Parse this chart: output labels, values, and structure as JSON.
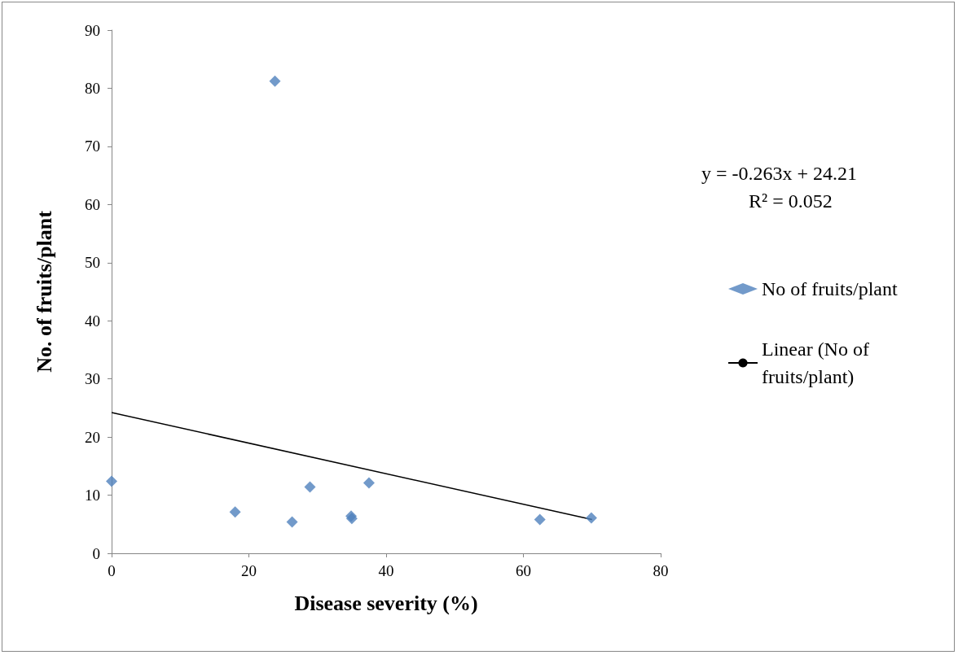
{
  "chart_data": {
    "type": "scatter",
    "xlabel": "Disease severity (%)",
    "ylabel": "No. of fruits/plant",
    "annotations": [
      "y = -0.263x + 24.21",
      "R² = 0.052"
    ],
    "series": [
      {
        "name": "No of fruits/plant",
        "color": "#4f81bd",
        "marker": "diamond",
        "x": [
          0,
          18,
          23.8,
          26.3,
          28.9,
          34.9,
          35,
          37.5,
          62.4,
          69.9
        ],
        "values": [
          12.4,
          7.1,
          81.2,
          5.4,
          11.4,
          6.4,
          6,
          12.1,
          5.8,
          6.1
        ]
      },
      {
        "name": "Linear (No of fruits/plant)",
        "type": "line",
        "color": "#000000",
        "marker": "none",
        "line_style": "solid",
        "x": [
          0,
          70
        ],
        "values": [
          24.21,
          5.8
        ]
      }
    ],
    "xlim": [
      0,
      80
    ],
    "xticks": [
      0,
      20,
      40,
      60,
      80
    ],
    "ylim": [
      0,
      90
    ],
    "yticks": [
      0,
      10,
      20,
      30,
      40,
      50,
      60,
      70,
      80,
      90
    ],
    "grid": false,
    "legend": "right"
  }
}
